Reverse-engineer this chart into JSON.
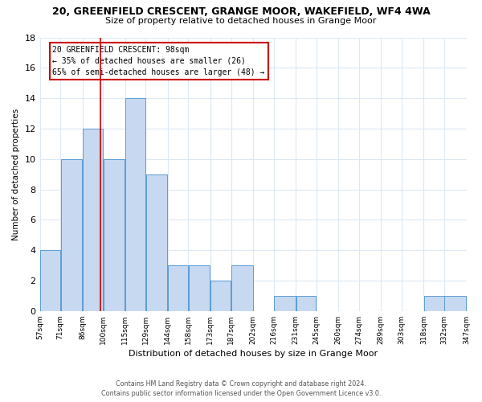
{
  "title_line1": "20, GREENFIELD CRESCENT, GRANGE MOOR, WAKEFIELD, WF4 4WA",
  "title_line2": "Size of property relative to detached houses in Grange Moor",
  "xlabel": "Distribution of detached houses by size in Grange Moor",
  "ylabel": "Number of detached properties",
  "bin_edges": [
    57,
    71,
    86,
    100,
    115,
    129,
    144,
    158,
    173,
    187,
    202,
    216,
    231,
    245,
    260,
    274,
    289,
    303,
    318,
    332,
    347
  ],
  "counts": [
    4,
    10,
    12,
    10,
    14,
    9,
    3,
    3,
    2,
    3,
    0,
    1,
    1,
    0,
    0,
    0,
    0,
    0,
    1,
    1
  ],
  "bar_color": "#c6d9f0",
  "bar_edgecolor": "#5b9bd5",
  "vline_x": 98,
  "vline_color": "#cc0000",
  "ylim": [
    0,
    18
  ],
  "yticks": [
    0,
    2,
    4,
    6,
    8,
    10,
    12,
    14,
    16,
    18
  ],
  "annotation_text": "20 GREENFIELD CRESCENT: 98sqm\n← 35% of detached houses are smaller (26)\n65% of semi-detached houses are larger (48) →",
  "annotation_box_color": "#ffffff",
  "annotation_box_edgecolor": "#cc0000",
  "footer_line1": "Contains HM Land Registry data © Crown copyright and database right 2024.",
  "footer_line2": "Contains public sector information licensed under the Open Government Licence v3.0.",
  "background_color": "#ffffff",
  "grid_color": "#dce9f5"
}
